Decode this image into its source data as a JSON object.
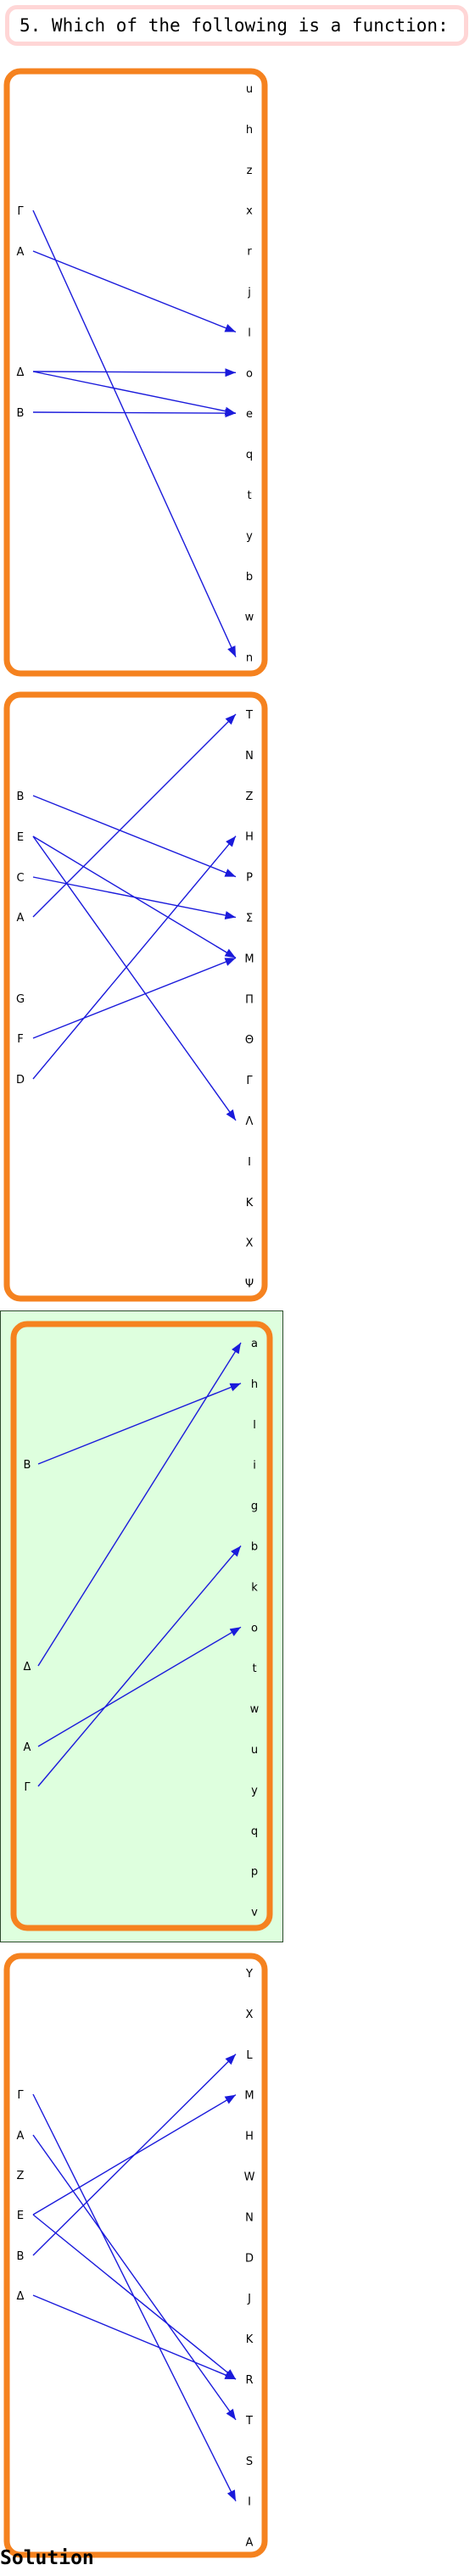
{
  "question": "5. Which of the following is a function:",
  "solution_label": "Solution",
  "colors": {
    "panel_border": "#f5821f",
    "arrow": "#1a1adb",
    "correct_bg": "#deffde",
    "question_border": "#ffd6d6"
  },
  "panels": [
    {
      "correct": false,
      "left": [
        "Γ",
        "A",
        "Δ",
        "B"
      ],
      "right": [
        "u",
        "h",
        "z",
        "x",
        "r",
        "j",
        "l",
        "o",
        "e",
        "q",
        "t",
        "y",
        "b",
        "w",
        "n"
      ],
      "mappings": [
        [
          "Γ",
          "n"
        ],
        [
          "A",
          "l"
        ],
        [
          "Δ",
          "o"
        ],
        [
          "Δ",
          "e"
        ],
        [
          "B",
          "e"
        ]
      ]
    },
    {
      "correct": false,
      "left": [
        "B",
        "E",
        "C",
        "A",
        "G",
        "F",
        "D"
      ],
      "right": [
        "T",
        "N",
        "Z",
        "H",
        "P",
        "Σ",
        "M",
        "Π",
        "Θ",
        "Γ",
        "Λ",
        "I",
        "K",
        "X",
        "Ψ"
      ],
      "mappings": [
        [
          "B",
          "P"
        ],
        [
          "E",
          "M"
        ],
        [
          "E",
          "Λ"
        ],
        [
          "C",
          "Σ"
        ],
        [
          "A",
          "T"
        ],
        [
          "F",
          "M"
        ],
        [
          "D",
          "H"
        ]
      ]
    },
    {
      "correct": true,
      "left": [
        "B",
        "Δ",
        "A",
        "Γ"
      ],
      "right": [
        "a",
        "h",
        "l",
        "i",
        "g",
        "b",
        "k",
        "o",
        "t",
        "w",
        "u",
        "y",
        "q",
        "p",
        "v"
      ],
      "mappings": [
        [
          "B",
          "h"
        ],
        [
          "Δ",
          "a"
        ],
        [
          "A",
          "o"
        ],
        [
          "Γ",
          "b"
        ]
      ]
    },
    {
      "correct": false,
      "left": [
        "Γ",
        "A",
        "Z",
        "E",
        "B",
        "Δ"
      ],
      "right": [
        "Y",
        "X",
        "L",
        "M",
        "H",
        "W",
        "N",
        "D",
        "J",
        "K",
        "R",
        "T",
        "S",
        "I",
        "A"
      ],
      "mappings": [
        [
          "Γ",
          "I"
        ],
        [
          "A",
          "T"
        ],
        [
          "E",
          "M"
        ],
        [
          "E",
          "R"
        ],
        [
          "B",
          "L"
        ],
        [
          "Δ",
          "R"
        ]
      ]
    }
  ]
}
